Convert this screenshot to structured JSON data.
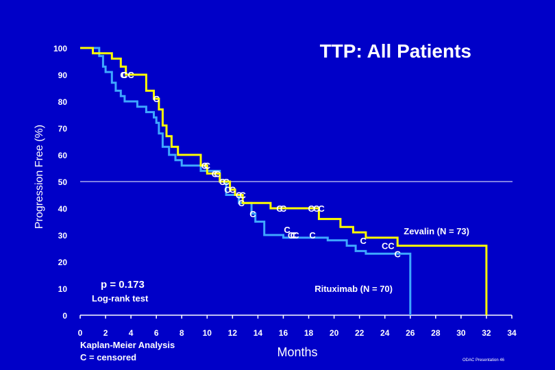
{
  "chart_data": {
    "type": "line",
    "title": "TTP:  All Patients",
    "xlabel": "Months",
    "ylabel": "Progression Free (%)",
    "xlim": [
      0,
      34
    ],
    "ylim": [
      0,
      100
    ],
    "x_ticks": [
      "0",
      "2",
      "4",
      "6",
      "8",
      "10",
      "12",
      "14",
      "16",
      "18",
      "20",
      "22",
      "24",
      "26",
      "28",
      "30",
      "32",
      "34"
    ],
    "y_ticks": [
      "100",
      "90",
      "80",
      "70",
      "60",
      "50",
      "40",
      "30",
      "20",
      "10",
      "0"
    ],
    "reference_line_y": 50,
    "series": [
      {
        "name": "Zevalin (N = 73)",
        "color": "#ffff00",
        "steps": [
          [
            0,
            100
          ],
          [
            1.0,
            100
          ],
          [
            1.0,
            98
          ],
          [
            2.5,
            98
          ],
          [
            2.5,
            96
          ],
          [
            3.2,
            96
          ],
          [
            3.2,
            93
          ],
          [
            3.6,
            93
          ],
          [
            3.6,
            90
          ],
          [
            5.2,
            90
          ],
          [
            5.2,
            84
          ],
          [
            5.8,
            84
          ],
          [
            5.8,
            81
          ],
          [
            6.2,
            81
          ],
          [
            6.2,
            77
          ],
          [
            6.5,
            77
          ],
          [
            6.5,
            71
          ],
          [
            6.8,
            71
          ],
          [
            6.8,
            67
          ],
          [
            7.2,
            67
          ],
          [
            7.2,
            63
          ],
          [
            7.7,
            63
          ],
          [
            7.7,
            60
          ],
          [
            9.5,
            60
          ],
          [
            9.5,
            56
          ],
          [
            10.0,
            56
          ],
          [
            10.0,
            53
          ],
          [
            11.0,
            53
          ],
          [
            11.0,
            50
          ],
          [
            11.8,
            50
          ],
          [
            11.8,
            47
          ],
          [
            12.2,
            47
          ],
          [
            12.2,
            45
          ],
          [
            12.8,
            45
          ],
          [
            12.8,
            42
          ],
          [
            15.0,
            42
          ],
          [
            15.0,
            40
          ],
          [
            18.8,
            40
          ],
          [
            18.8,
            36
          ],
          [
            20.5,
            36
          ],
          [
            20.5,
            33
          ],
          [
            21.5,
            33
          ],
          [
            21.5,
            31
          ],
          [
            22.5,
            31
          ],
          [
            22.5,
            29
          ],
          [
            25.0,
            29
          ],
          [
            25.0,
            26
          ],
          [
            32.0,
            26
          ],
          [
            32.0,
            0
          ]
        ],
        "censored": [
          [
            3.5,
            90
          ],
          [
            4.0,
            90
          ],
          [
            6.0,
            81
          ],
          [
            9.8,
            56
          ],
          [
            10.8,
            53
          ],
          [
            11.5,
            50
          ],
          [
            12.5,
            45
          ],
          [
            12.8,
            45
          ],
          [
            15.7,
            40
          ],
          [
            16.0,
            40
          ],
          [
            18.2,
            40
          ],
          [
            18.6,
            40
          ],
          [
            19.0,
            40
          ]
        ]
      },
      {
        "name": "Rituximab (N = 70)",
        "color": "#3fa7ff",
        "steps": [
          [
            0,
            100
          ],
          [
            1.5,
            100
          ],
          [
            1.5,
            97
          ],
          [
            1.8,
            97
          ],
          [
            1.8,
            93
          ],
          [
            2.0,
            93
          ],
          [
            2.0,
            91
          ],
          [
            2.5,
            91
          ],
          [
            2.5,
            87
          ],
          [
            2.8,
            87
          ],
          [
            2.8,
            84
          ],
          [
            3.2,
            84
          ],
          [
            3.2,
            82
          ],
          [
            3.5,
            82
          ],
          [
            3.5,
            80
          ],
          [
            4.5,
            80
          ],
          [
            4.5,
            78
          ],
          [
            5.2,
            78
          ],
          [
            5.2,
            76
          ],
          [
            5.8,
            76
          ],
          [
            5.8,
            74
          ],
          [
            6.0,
            74
          ],
          [
            6.0,
            72
          ],
          [
            6.2,
            72
          ],
          [
            6.2,
            68
          ],
          [
            6.5,
            68
          ],
          [
            6.5,
            63
          ],
          [
            7.0,
            63
          ],
          [
            7.0,
            60
          ],
          [
            7.5,
            60
          ],
          [
            7.5,
            58
          ],
          [
            8.0,
            58
          ],
          [
            8.0,
            56
          ],
          [
            9.5,
            56
          ],
          [
            9.5,
            54
          ],
          [
            11.0,
            54
          ],
          [
            11.0,
            50
          ],
          [
            11.5,
            50
          ],
          [
            11.5,
            45
          ],
          [
            12.5,
            45
          ],
          [
            12.5,
            42
          ],
          [
            13.5,
            42
          ],
          [
            13.5,
            38
          ],
          [
            13.8,
            38
          ],
          [
            13.8,
            35
          ],
          [
            14.5,
            35
          ],
          [
            14.5,
            30
          ],
          [
            16.0,
            30
          ],
          [
            16.0,
            29
          ],
          [
            18.0,
            29
          ],
          [
            18.0,
            29
          ],
          [
            19.5,
            29
          ],
          [
            19.5,
            28
          ],
          [
            21.0,
            28
          ],
          [
            21.0,
            26
          ],
          [
            21.7,
            26
          ],
          [
            21.7,
            24
          ],
          [
            22.5,
            24
          ],
          [
            22.5,
            23
          ],
          [
            26.0,
            23
          ],
          [
            26.0,
            0
          ]
        ],
        "censored": [
          [
            3.4,
            90
          ],
          [
            10.0,
            56
          ],
          [
            10.6,
            53
          ],
          [
            11.2,
            50
          ],
          [
            11.6,
            47
          ],
          [
            12.0,
            47
          ],
          [
            12.7,
            42
          ],
          [
            13.6,
            38
          ],
          [
            16.3,
            32
          ],
          [
            16.6,
            30
          ],
          [
            16.8,
            30
          ],
          [
            17.0,
            30
          ],
          [
            18.3,
            30
          ],
          [
            22.3,
            28
          ],
          [
            24.0,
            26
          ],
          [
            24.5,
            26
          ],
          [
            25.0,
            23
          ]
        ]
      }
    ],
    "annotations": {
      "zevalin_label": "Zevalin (N = 73)",
      "rituximab_label": "Rituximab (N = 70)",
      "p_value": "p = 0.173",
      "test": "Log-rank test",
      "method_line1": "Kaplan-Meier Analysis",
      "method_line2": "C = censored",
      "censor_symbol": "C",
      "source": "ODAC Presentation  46"
    }
  }
}
